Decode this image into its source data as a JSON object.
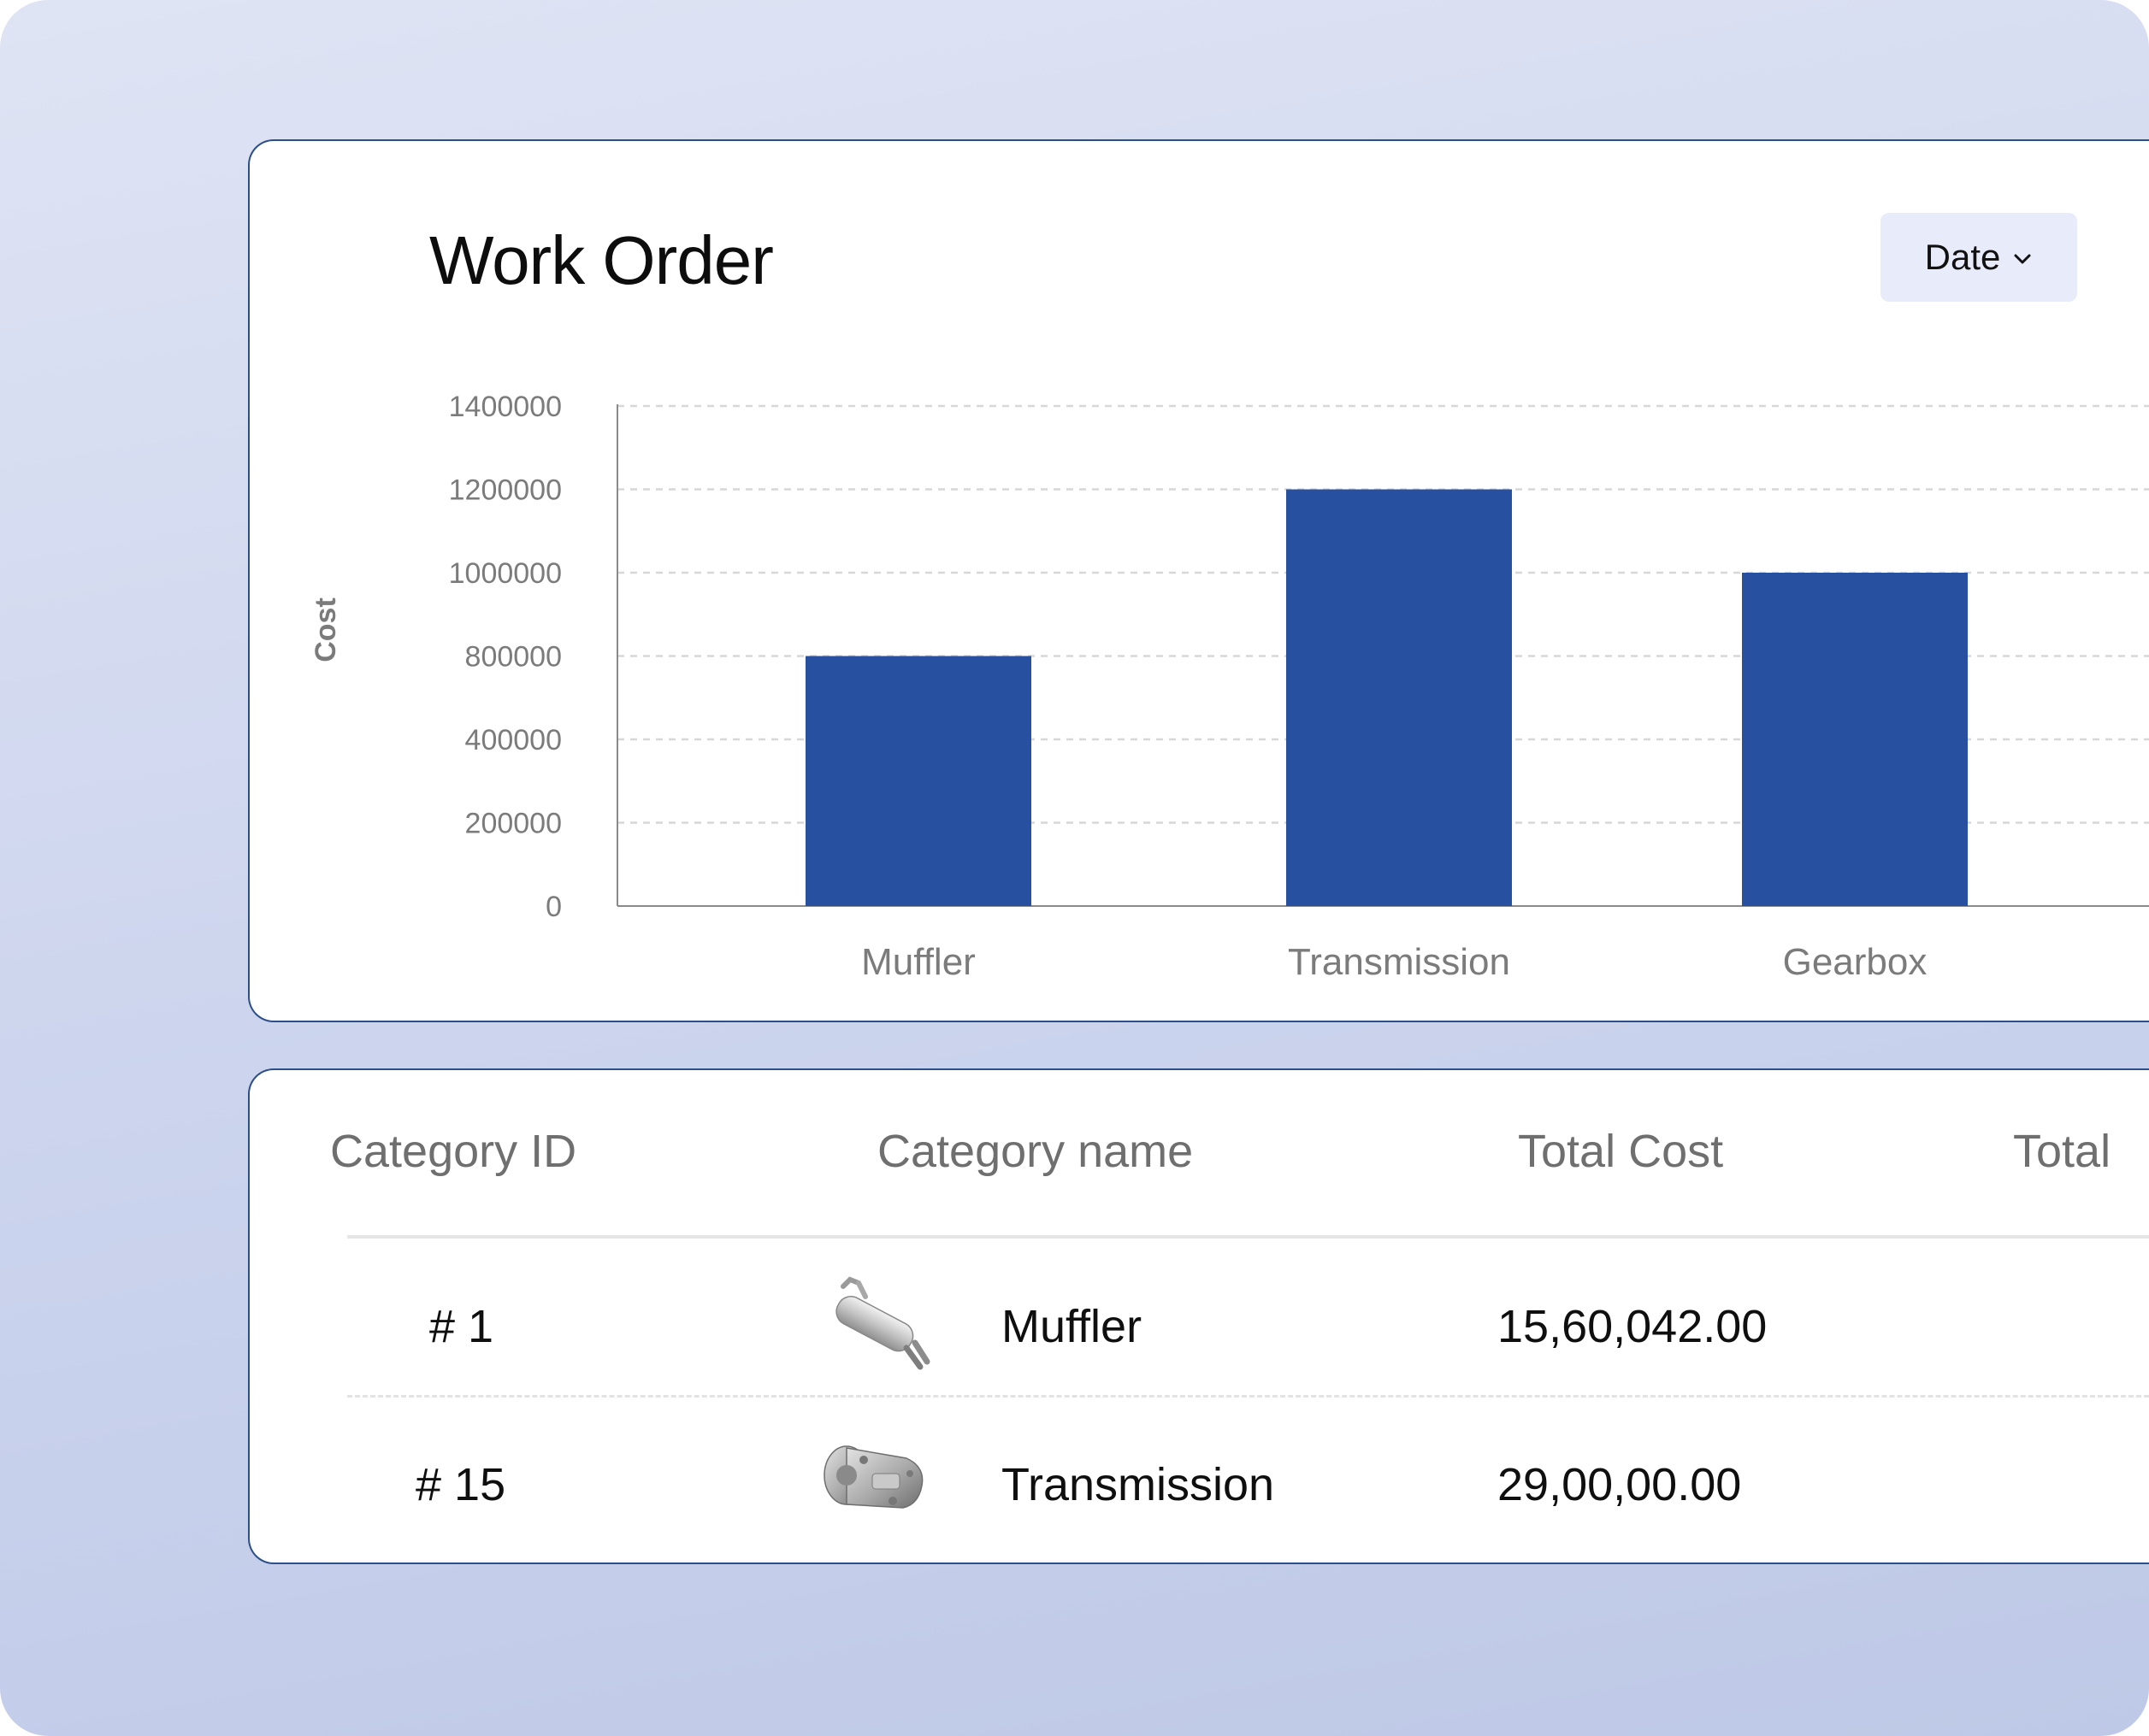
{
  "title": "Work Order",
  "filter": {
    "label": "Date",
    "icon": "chevron-down-icon"
  },
  "chart_data": {
    "type": "bar",
    "categories": [
      "Muffler",
      "Transmission",
      "Gearbox"
    ],
    "values": [
      800000,
      1200000,
      1000000
    ],
    "ylabel": "Cost",
    "y_ticks": [
      "0",
      "200000",
      "400000",
      "800000",
      "1000000",
      "1200000",
      "1400000"
    ],
    "grid": true,
    "bar_color": "#2850a0"
  },
  "table": {
    "headers": [
      "Category ID",
      "Category name",
      "Total Cost",
      "Total"
    ],
    "rows": [
      {
        "id": "# 1",
        "image": "muffler-image",
        "name": "Muffler",
        "cost": "15,60,042.00"
      },
      {
        "id": "# 15",
        "image": "transmission-image",
        "name": "Transmission",
        "cost": "29,00,00.00"
      }
    ]
  }
}
